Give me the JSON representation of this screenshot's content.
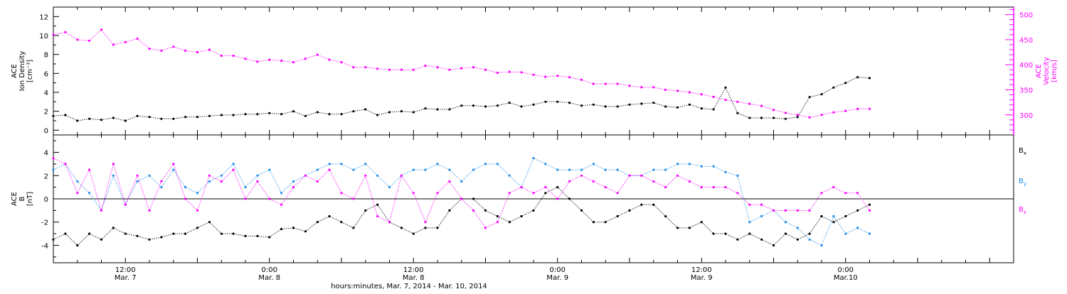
{
  "colors": {
    "axis": "#000000",
    "density": "#000000",
    "velocity": "#ff00ff",
    "bx": "#000000",
    "by": "#1e8ce8",
    "bz": "#ff00ff"
  },
  "chart_data": [
    {
      "type": "scatter",
      "panel": "plasma",
      "ylabel": [
        "ACE",
        "Ion Density",
        "[cm⁻³]"
      ],
      "y2label": [
        "ACE",
        "Velocity",
        "[km/s]"
      ],
      "x_range_hours": [
        0,
        80
      ],
      "ylim": [
        -0.5,
        13
      ],
      "y2lim": [
        260,
        515
      ],
      "yticks": [
        0,
        2,
        4,
        6,
        8,
        10,
        12
      ],
      "y2ticks": [
        300,
        350,
        400,
        450,
        500
      ],
      "series": [
        {
          "name": "",
          "axis": "left",
          "color_key": "density",
          "x": [
            0,
            1,
            2,
            3,
            4,
            5,
            6,
            7,
            8,
            9,
            10,
            11,
            12,
            13,
            14,
            15,
            16,
            17,
            18,
            19,
            20,
            21,
            22,
            23,
            24,
            25,
            26,
            27,
            28,
            29,
            30,
            31,
            32,
            33,
            34,
            35,
            36,
            37,
            38,
            39,
            40,
            41,
            42,
            43,
            44,
            45,
            46,
            47,
            48,
            49,
            50,
            51,
            52,
            53,
            54,
            55,
            56,
            57,
            58,
            59,
            60,
            61,
            62,
            63,
            64,
            65,
            66,
            67,
            68
          ],
          "y": [
            1.5,
            1.6,
            1.0,
            1.2,
            1.1,
            1.3,
            1.0,
            1.5,
            1.4,
            1.2,
            1.2,
            1.4,
            1.4,
            1.5,
            1.6,
            1.6,
            1.7,
            1.7,
            1.8,
            1.7,
            2.0,
            1.5,
            1.9,
            1.7,
            1.7,
            2.0,
            2.2,
            1.6,
            1.9,
            2.0,
            1.9,
            2.3,
            2.2,
            2.2,
            2.6,
            2.6,
            2.5,
            2.6,
            2.9,
            2.5,
            2.7,
            3.0,
            3.0,
            2.9,
            2.6,
            2.7,
            2.5,
            2.5,
            2.7,
            2.8,
            2.9,
            2.5,
            2.4,
            2.7,
            2.3,
            2.2,
            4.5,
            1.8,
            1.3,
            1.3,
            1.3,
            1.2,
            1.4,
            3.5,
            3.8,
            4.5,
            5.0,
            5.6,
            5.5
          ]
        },
        {
          "name": "",
          "axis": "right",
          "color_key": "velocity",
          "x": [
            0,
            1,
            2,
            3,
            4,
            5,
            6,
            7,
            8,
            9,
            10,
            11,
            12,
            13,
            14,
            15,
            16,
            17,
            18,
            19,
            20,
            21,
            22,
            23,
            24,
            25,
            26,
            27,
            28,
            29,
            30,
            31,
            32,
            33,
            34,
            35,
            36,
            37,
            38,
            39,
            40,
            41,
            42,
            43,
            44,
            45,
            46,
            47,
            48,
            49,
            50,
            51,
            52,
            53,
            54,
            55,
            56,
            57,
            58,
            59,
            60,
            61,
            62,
            63,
            64,
            65,
            66,
            67,
            68
          ],
          "y": [
            460,
            465,
            450,
            448,
            470,
            440,
            445,
            452,
            432,
            428,
            436,
            428,
            425,
            430,
            418,
            418,
            412,
            406,
            410,
            408,
            405,
            412,
            420,
            410,
            405,
            395,
            395,
            392,
            390,
            390,
            390,
            398,
            395,
            390,
            393,
            395,
            390,
            384,
            386,
            385,
            380,
            376,
            378,
            375,
            370,
            362,
            362,
            362,
            358,
            355,
            355,
            350,
            348,
            345,
            341,
            336,
            330,
            326,
            322,
            318,
            310,
            304,
            300,
            295,
            300,
            305,
            308,
            312,
            312
          ]
        }
      ]
    },
    {
      "type": "scatter",
      "panel": "magnetic field",
      "ylabel": [
        "ACE",
        "B",
        "[nT]"
      ],
      "x_range_hours": [
        0,
        80
      ],
      "ylim": [
        -5.5,
        5.5
      ],
      "yticks": [
        -4,
        -2,
        0,
        2,
        4
      ],
      "legend": [
        "Bx",
        "By",
        "Bz"
      ],
      "legend_position": "right",
      "x_tick_labels": [
        {
          "hours": 6,
          "time": "12:00",
          "day": "Mar. 7"
        },
        {
          "hours": 18,
          "time": "0:00",
          "day": "Mar. 8"
        },
        {
          "hours": 30,
          "time": "12:00",
          "day": "Mar. 8"
        },
        {
          "hours": 42,
          "time": "0:00",
          "day": "Mar. 9"
        },
        {
          "hours": 54,
          "time": "12:00",
          "day": "Mar. 9"
        },
        {
          "hours": 66,
          "time": "0:00",
          "day": "Mar.10"
        }
      ],
      "xlabel": "hours:minutes, Mar.  7, 2014 - Mar. 10, 2014",
      "series": [
        {
          "name": "Bx",
          "color_key": "bx",
          "x": [
            0,
            1,
            2,
            3,
            4,
            5,
            6,
            7,
            8,
            9,
            10,
            11,
            12,
            13,
            14,
            15,
            16,
            17,
            18,
            19,
            20,
            21,
            22,
            23,
            24,
            25,
            26,
            27,
            28,
            29,
            30,
            31,
            32,
            33,
            34,
            35,
            36,
            37,
            38,
            39,
            40,
            41,
            42,
            43,
            44,
            45,
            46,
            47,
            48,
            49,
            50,
            51,
            52,
            53,
            54,
            55,
            56,
            57,
            58,
            59,
            60,
            61,
            62,
            63,
            64,
            65,
            66,
            67,
            68
          ],
          "y": [
            -3.5,
            -3.0,
            -4.0,
            -3.0,
            -3.5,
            -2.5,
            -3.0,
            -3.2,
            -3.5,
            -3.3,
            -3.0,
            -3.0,
            -2.5,
            -2.0,
            -3.0,
            -3.0,
            -3.2,
            -3.2,
            -3.3,
            -2.6,
            -2.5,
            -2.8,
            -2.0,
            -1.5,
            -2.0,
            -2.5,
            -1.0,
            -0.5,
            -2.0,
            -2.5,
            -3.0,
            -2.5,
            -2.5,
            -1.0,
            0.0,
            0.0,
            -1.0,
            -1.5,
            -2.0,
            -1.5,
            -1.0,
            0.5,
            1.0,
            0.0,
            -1.0,
            -2.0,
            -2.0,
            -1.5,
            -1.0,
            -0.5,
            -0.5,
            -1.5,
            -2.5,
            -2.5,
            -2.0,
            -3.0,
            -3.0,
            -3.5,
            -3.0,
            -3.5,
            -4.0,
            -3.0,
            -3.5,
            -3.0,
            -1.5,
            -2.0,
            -1.5,
            -1.0,
            -0.5
          ]
        },
        {
          "name": "By",
          "color_key": "by",
          "x": [
            0,
            1,
            2,
            3,
            4,
            5,
            6,
            7,
            8,
            9,
            10,
            11,
            12,
            13,
            14,
            15,
            16,
            17,
            18,
            19,
            20,
            21,
            22,
            23,
            24,
            25,
            26,
            27,
            28,
            29,
            30,
            31,
            32,
            33,
            34,
            35,
            36,
            37,
            38,
            39,
            40,
            41,
            42,
            43,
            44,
            45,
            46,
            47,
            48,
            49,
            50,
            51,
            52,
            53,
            54,
            55,
            56,
            57,
            58,
            59,
            60,
            61,
            62,
            63,
            64,
            65,
            66,
            67,
            68
          ],
          "y": [
            2.5,
            3.0,
            1.5,
            0.5,
            -1.0,
            2.0,
            -0.5,
            1.5,
            2.0,
            1.0,
            2.5,
            1.0,
            0.5,
            1.5,
            2.0,
            3.0,
            1.0,
            2.0,
            2.5,
            0.5,
            1.5,
            2.0,
            2.5,
            3.0,
            3.0,
            2.5,
            3.0,
            2.0,
            1.0,
            2.0,
            2.5,
            2.5,
            3.0,
            2.5,
            1.5,
            2.5,
            3.0,
            3.0,
            2.0,
            1.0,
            3.5,
            3.0,
            2.5,
            2.5,
            2.5,
            3.0,
            2.5,
            2.5,
            2.0,
            2.0,
            2.5,
            2.5,
            3.0,
            3.0,
            2.8,
            2.8,
            2.3,
            2.0,
            -2.0,
            -1.5,
            -1.0,
            -2.0,
            -2.5,
            -3.5,
            -4.0,
            -1.5,
            -3.0,
            -2.5,
            -3.0
          ]
        },
        {
          "name": "Bz",
          "color_key": "bz",
          "x": [
            0,
            1,
            2,
            3,
            4,
            5,
            6,
            7,
            8,
            9,
            10,
            11,
            12,
            13,
            14,
            15,
            16,
            17,
            18,
            19,
            20,
            21,
            22,
            23,
            24,
            25,
            26,
            27,
            28,
            29,
            30,
            31,
            32,
            33,
            34,
            35,
            36,
            37,
            38,
            39,
            40,
            41,
            42,
            43,
            44,
            45,
            46,
            47,
            48,
            49,
            50,
            51,
            52,
            53,
            54,
            55,
            56,
            57,
            58,
            59,
            60,
            61,
            62,
            63,
            64,
            65,
            66,
            67,
            68
          ],
          "y": [
            3.5,
            3.0,
            0.5,
            2.5,
            -1.0,
            3.0,
            -0.5,
            2.0,
            -1.0,
            1.5,
            3.0,
            0.0,
            -1.0,
            2.0,
            1.5,
            2.5,
            0.0,
            1.5,
            0.0,
            -0.5,
            1.0,
            2.0,
            1.5,
            2.5,
            0.5,
            0.0,
            2.0,
            -1.5,
            -2.0,
            2.0,
            0.5,
            -2.0,
            0.5,
            1.5,
            0.0,
            -1.0,
            -2.5,
            -2.0,
            0.5,
            1.0,
            0.5,
            1.0,
            0.0,
            1.5,
            2.0,
            1.5,
            1.0,
            0.5,
            2.0,
            2.0,
            1.5,
            1.0,
            2.0,
            1.5,
            1.0,
            1.0,
            1.0,
            0.5,
            -0.5,
            -0.5,
            -1.0,
            -1.0,
            -1.0,
            -1.0,
            0.5,
            1.0,
            0.5,
            0.5,
            -1.0
          ]
        }
      ]
    }
  ]
}
